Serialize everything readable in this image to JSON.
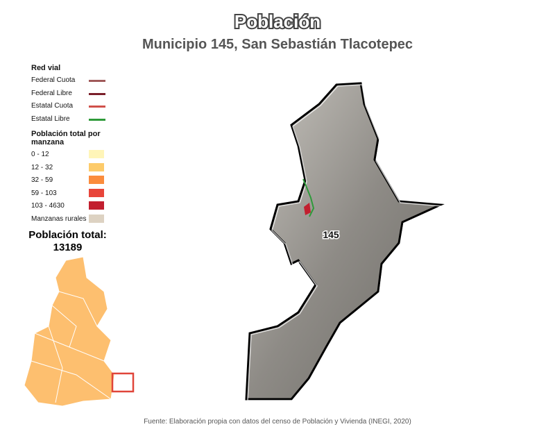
{
  "header": {
    "title": "Población",
    "subtitle": "Municipio 145, San Sebastián Tlacotepec"
  },
  "legend": {
    "roads": {
      "title": "Red vial",
      "items": [
        {
          "label": "Federal Cuota",
          "color": "#a05a5a"
        },
        {
          "label": "Federal Libre",
          "color": "#7a1f2a"
        },
        {
          "label": "Estatal Cuota",
          "color": "#d0504a"
        },
        {
          "label": "Estatal Libre",
          "color": "#2e9a3a"
        }
      ]
    },
    "blocks": {
      "title": "Población total por manzana",
      "items": [
        {
          "label": "0 - 12",
          "color": "#fff5b8"
        },
        {
          "label": "12 - 32",
          "color": "#fdcb6a"
        },
        {
          "label": "32 - 59",
          "color": "#fb8c3c"
        },
        {
          "label": "59 - 103",
          "color": "#e8453a"
        },
        {
          "label": "103 - 4630",
          "color": "#c21f2f"
        },
        {
          "label": "Manzanas rurales",
          "color": "#ddd2c2"
        }
      ]
    }
  },
  "total": {
    "label": "Población total:",
    "value": 13189
  },
  "map": {
    "municipality_label": "145"
  },
  "source": "Fuente: Elaboración propia con datos del censo de Población y Vivienda (INEGI, 2020)"
}
